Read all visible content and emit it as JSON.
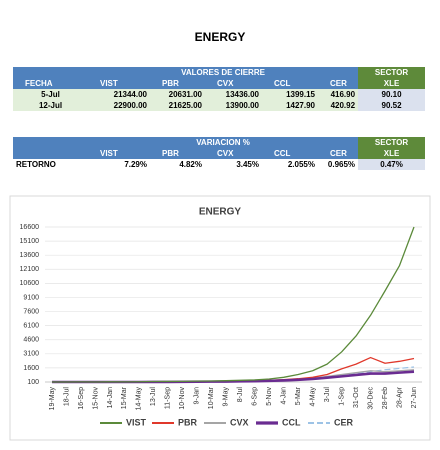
{
  "title": "ENERGY",
  "table1": {
    "group_header": "VALORES DE CIERRE",
    "sector_header": "SECTOR",
    "columns": [
      "FECHA",
      "VIST",
      "PBR",
      "CVX",
      "CCL",
      "CER",
      "XLE"
    ],
    "rows": [
      [
        "5-Jul",
        "21344.00",
        "20631.00",
        "13436.00",
        "1399.15",
        "416.90",
        "90.10"
      ],
      [
        "12-Jul",
        "22900.00",
        "21625.00",
        "13900.00",
        "1427.90",
        "420.92",
        "90.52"
      ]
    ]
  },
  "table2": {
    "group_header": "VARIACION %",
    "sector_header": "SECTOR",
    "columns": [
      "VIST",
      "PBR",
      "CVX",
      "CCL",
      "CER",
      "XLE"
    ],
    "rows": [
      [
        "RETORNO",
        "7.29%",
        "4.82%",
        "3.45%",
        "2.055%",
        "0.965%",
        "0.47%"
      ]
    ]
  },
  "chart_data": {
    "type": "line",
    "title": "ENERGY",
    "categories": [
      "19-May",
      "18-Jul",
      "16-Sep",
      "15-Nov",
      "14-Jan",
      "15-Mar",
      "14-May",
      "13-Jul",
      "11-Sep",
      "10-Nov",
      "9-Jan",
      "10-Mar",
      "9-May",
      "8-Jul",
      "6-Sep",
      "5-Nov",
      "4-Jan",
      "5-Mar",
      "4-May",
      "3-Jul",
      "1-Sep",
      "31-Oct",
      "30-Dec",
      "28-Feb",
      "28-Apr",
      "27-Jun"
    ],
    "series": [
      {
        "name": "VIST",
        "color": "#5b8a3a",
        "line_width": 1.3,
        "values": [
          100,
          100,
          110,
          100,
          120,
          110,
          130,
          150,
          160,
          170,
          190,
          210,
          240,
          280,
          320,
          420,
          600,
          900,
          1300,
          2000,
          3300,
          5000,
          7200,
          9800,
          12500,
          16600
        ]
      },
      {
        "name": "PBR",
        "color": "#e0382b",
        "line_width": 1.3,
        "values": [
          100,
          100,
          100,
          100,
          110,
          100,
          110,
          120,
          130,
          140,
          150,
          160,
          180,
          200,
          230,
          280,
          350,
          450,
          600,
          900,
          1500,
          2000,
          2700,
          2100,
          2300,
          2600
        ]
      },
      {
        "name": "CVX",
        "color": "#a5a5a5",
        "line_width": 1.3,
        "values": [
          100,
          100,
          100,
          100,
          100,
          100,
          110,
          110,
          120,
          130,
          140,
          150,
          170,
          190,
          210,
          250,
          300,
          380,
          500,
          700,
          900,
          1100,
          1300,
          1200,
          1300,
          1400
        ]
      },
      {
        "name": "CCL",
        "color": "#6a2c91",
        "line_width": 2.6,
        "values": [
          100,
          100,
          100,
          100,
          100,
          100,
          100,
          110,
          110,
          120,
          130,
          140,
          150,
          170,
          190,
          220,
          270,
          330,
          420,
          560,
          700,
          850,
          1000,
          1000,
          1100,
          1200
        ]
      },
      {
        "name": "CER",
        "color": "#9dc3e6",
        "line_width": 1.3,
        "dashed": true,
        "values": [
          100,
          100,
          100,
          100,
          100,
          100,
          110,
          110,
          120,
          130,
          140,
          150,
          170,
          190,
          220,
          260,
          320,
          400,
          520,
          650,
          800,
          1000,
          1200,
          1400,
          1550,
          1700
        ]
      }
    ],
    "ylim": [
      100,
      16600
    ],
    "yticks": [
      100,
      1600,
      3100,
      4600,
      6100,
      7600,
      9100,
      10600,
      12100,
      13600,
      15100,
      16600
    ],
    "grid": true,
    "legend": "bottom"
  }
}
